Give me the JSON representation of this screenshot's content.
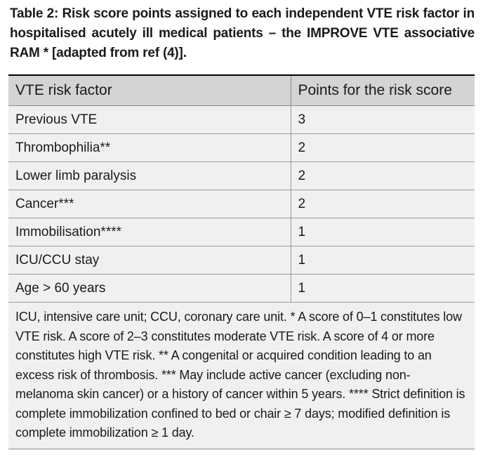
{
  "caption": "Table 2: Risk score points assigned to each independent VTE risk factor in hospitalised acutely ill medical patients – the IMPROVE VTE associative RAM * [adapted from ref (4)].",
  "table": {
    "headers": [
      "VTE risk factor",
      "Points for the risk score"
    ],
    "rows": [
      {
        "factor": "Previous VTE",
        "points": "3"
      },
      {
        "factor": "Thrombophilia**",
        "points": "2"
      },
      {
        "factor": "Lower limb paralysis",
        "points": "2"
      },
      {
        "factor": "Cancer***",
        "points": "2"
      },
      {
        "factor": "Immobilisation****",
        "points": "1"
      },
      {
        "factor": "ICU/CCU stay",
        "points": "1"
      },
      {
        "factor": "Age > 60 years",
        "points": "1"
      }
    ]
  },
  "footnote": "ICU, intensive care unit; CCU, coronary care unit. * A score of 0–1 constitutes low VTE risk. A score of 2–3 constitutes moderate VTE risk. A score of 4 or more constitutes high VTE risk. ** A congenital or acquired condition leading to an excess risk of thrombosis. *** May include active cancer (excluding non-melanoma skin cancer) or a history of cancer within 5 years. **** Strict definition is complete immobilization confined to bed or chair ≥ 7 days; modified definition is complete immobilization ≥ 1 day."
}
